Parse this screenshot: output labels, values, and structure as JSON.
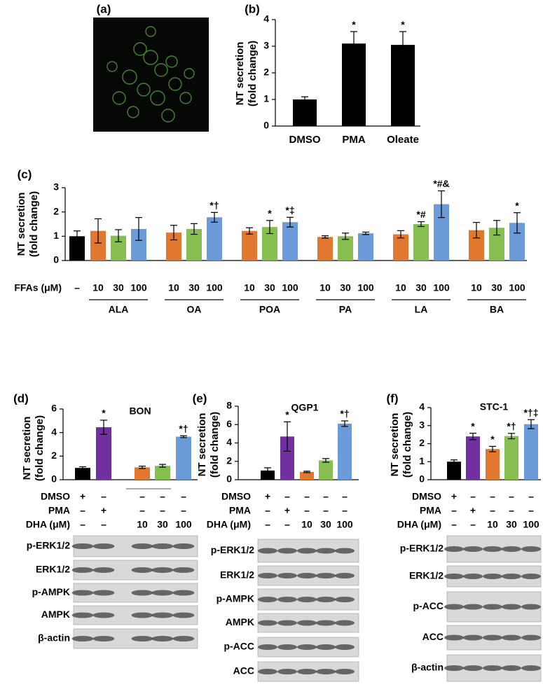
{
  "chart_data": [
    {
      "type": "image",
      "label": "(a)"
    },
    {
      "type": "bar",
      "label": "(b)",
      "y_label": [
        "NT secretion",
        "(fold change)"
      ],
      "categories": [
        "DMSO",
        "PMA",
        "Oleate"
      ],
      "values": [
        1.0,
        3.1,
        3.05
      ],
      "errors": [
        0.1,
        0.45,
        0.5
      ],
      "annotations": [
        null,
        "*",
        "*"
      ],
      "color": "#000000",
      "ylim": [
        0,
        4
      ],
      "yticks": [
        0,
        1,
        2,
        3,
        4
      ]
    },
    {
      "type": "grouped-dose",
      "label": "(c)",
      "y_label": [
        "NT secretion",
        "(fold change)"
      ],
      "x_label": "FFAs (μM)",
      "categories": [
        "–",
        "10",
        "30",
        "100",
        "10",
        "30",
        "100",
        "10",
        "30",
        "100",
        "10",
        "30",
        "100",
        "10",
        "30",
        "100",
        "10",
        "30",
        "100"
      ],
      "groups": [
        "ALA",
        "OA",
        "POA",
        "PA",
        "LA",
        "BA"
      ],
      "values": [
        1.0,
        1.22,
        1.02,
        1.3,
        1.15,
        1.3,
        1.78,
        1.22,
        1.38,
        1.58,
        0.97,
        1.0,
        1.12,
        1.08,
        1.5,
        2.32,
        1.25,
        1.35,
        1.55
      ],
      "errors": [
        0.22,
        0.5,
        0.25,
        0.47,
        0.3,
        0.22,
        0.2,
        0.13,
        0.27,
        0.2,
        0.05,
        0.13,
        0.05,
        0.15,
        0.1,
        0.55,
        0.32,
        0.3,
        0.42
      ],
      "annotations": [
        null,
        null,
        null,
        null,
        null,
        null,
        "*†",
        null,
        "*",
        "*‡",
        null,
        null,
        null,
        null,
        "*#",
        "*#&",
        null,
        null,
        "*"
      ],
      "colors": [
        "#000000",
        "#e2772f",
        "#86bf4f",
        "#6a9bd8",
        "#e2772f",
        "#86bf4f",
        "#6a9bd8",
        "#e2772f",
        "#86bf4f",
        "#6a9bd8",
        "#e2772f",
        "#86bf4f",
        "#6a9bd8",
        "#e2772f",
        "#86bf4f",
        "#6a9bd8",
        "#e2772f",
        "#86bf4f",
        "#6a9bd8"
      ],
      "ylim": [
        0,
        3
      ],
      "yticks": [
        0,
        1,
        2,
        3
      ]
    },
    {
      "type": "treatment-bar",
      "label": "(d)",
      "title": "BON",
      "y_label": [
        "NT secretion",
        "(fold change)"
      ],
      "values": [
        1.0,
        4.45,
        1.05,
        1.18,
        3.65
      ],
      "errors": [
        0.1,
        0.6,
        0.1,
        0.12,
        0.08
      ],
      "annotations": [
        null,
        "*",
        null,
        null,
        "*†"
      ],
      "colors": [
        "#000000",
        "#7030a0",
        "#e2772f",
        "#86bf4f",
        "#6a9bd8"
      ],
      "ylim": [
        0,
        6
      ],
      "yticks": [
        0,
        2,
        4,
        6
      ],
      "treatments": [
        {
          "name": "DMSO",
          "values": [
            "+",
            "–",
            "–",
            "–",
            "–"
          ]
        },
        {
          "name": "PMA",
          "values": [
            "–",
            "+",
            "–",
            "–",
            "–"
          ]
        },
        {
          "name": "DHA (μM)",
          "values": [
            "–",
            "–",
            "10",
            "30",
            "100"
          ]
        }
      ],
      "blots": [
        "p-ERK1/2",
        "ERK1/2",
        "p-AMPK",
        "AMPK",
        "β-actin"
      ]
    },
    {
      "type": "treatment-bar",
      "label": "(e)",
      "title": "QGP1",
      "y_label": [
        "NT secretion",
        "(fold change)"
      ],
      "values": [
        1.0,
        4.7,
        0.85,
        2.1,
        6.1
      ],
      "errors": [
        0.3,
        1.6,
        0.08,
        0.2,
        0.3
      ],
      "annotations": [
        null,
        "*",
        null,
        null,
        "*†"
      ],
      "colors": [
        "#000000",
        "#7030a0",
        "#e2772f",
        "#86bf4f",
        "#6a9bd8"
      ],
      "ylim": [
        0,
        8
      ],
      "yticks": [
        0,
        2,
        4,
        6,
        8
      ],
      "treatments": [
        {
          "name": "DMSO",
          "values": [
            "+",
            "–",
            "–",
            "–",
            "–"
          ]
        },
        {
          "name": "PMA",
          "values": [
            "–",
            "+",
            "–",
            "–",
            "–"
          ]
        },
        {
          "name": "DHA (μM)",
          "values": [
            "–",
            "–",
            "10",
            "30",
            "100"
          ]
        }
      ],
      "blots": [
        "p-ERK1/2",
        "ERK1/2",
        "p-AMPK",
        "AMPK",
        "p-ACC",
        "ACC"
      ]
    },
    {
      "type": "treatment-bar",
      "label": "(f)",
      "title": "STC-1",
      "y_label": [
        "NT secretion",
        "(fold change)"
      ],
      "values": [
        1.0,
        2.4,
        1.7,
        2.42,
        3.08
      ],
      "errors": [
        0.1,
        0.18,
        0.15,
        0.15,
        0.25
      ],
      "annotations": [
        null,
        "*",
        "*",
        "*†",
        "*†‡"
      ],
      "colors": [
        "#000000",
        "#7030a0",
        "#e2772f",
        "#86bf4f",
        "#6a9bd8"
      ],
      "ylim": [
        0,
        4
      ],
      "yticks": [
        0,
        1,
        2,
        3,
        4
      ],
      "treatments": [
        {
          "name": "DMSO",
          "values": [
            "+",
            "–",
            "–",
            "–",
            "–"
          ]
        },
        {
          "name": "PMA",
          "values": [
            "–",
            "+",
            "–",
            "–",
            "–"
          ]
        },
        {
          "name": "DHA (μM)",
          "values": [
            "–",
            "–",
            "10",
            "30",
            "100"
          ]
        }
      ],
      "blots": [
        "p-ERK1/2",
        "ERK1/2",
        "p-ACC",
        "ACC",
        "β-actin"
      ]
    }
  ]
}
